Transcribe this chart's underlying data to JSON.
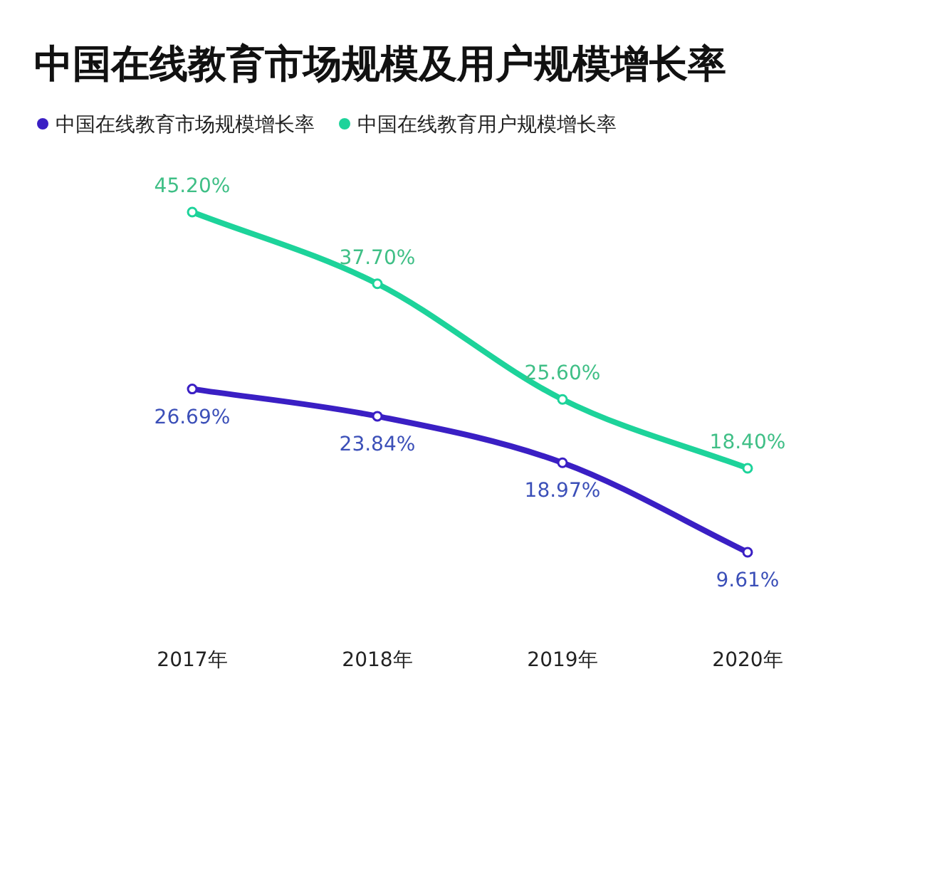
{
  "chart_data": {
    "type": "line",
    "title": "中国在线教育市场规模及用户规模增长率",
    "categories": [
      "2017年",
      "2018年",
      "2019年",
      "2020年"
    ],
    "series": [
      {
        "name": "中国在线教育市场规模增长率",
        "color": "#3a1fc4",
        "values": [
          26.69,
          23.84,
          18.97,
          9.61
        ],
        "value_labels": [
          "26.69%",
          "23.84%",
          "18.97%",
          "9.61%"
        ]
      },
      {
        "name": "中国在线教育用户规模增长率",
        "color": "#1dd39a",
        "values": [
          45.2,
          37.7,
          25.6,
          18.4
        ],
        "value_labels": [
          "45.20%",
          "37.70%",
          "25.60%",
          "18.40%"
        ]
      }
    ],
    "marker": "circle",
    "legend": "top left"
  }
}
